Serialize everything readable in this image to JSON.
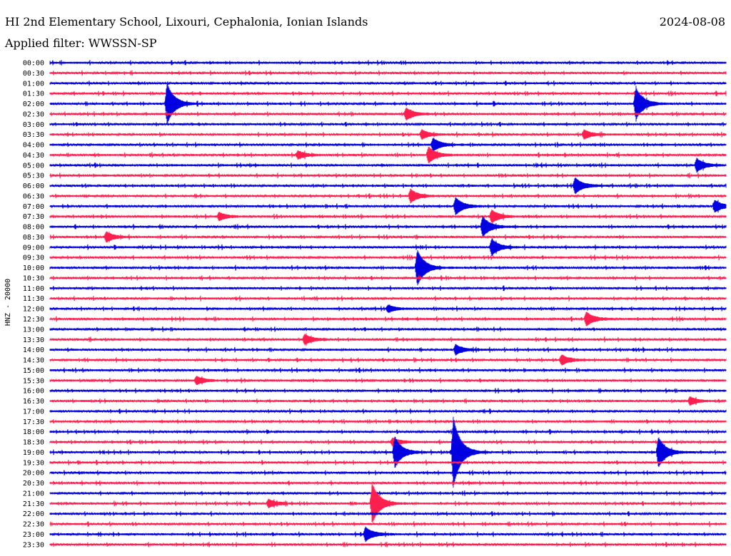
{
  "header": {
    "station": "HI 2nd Elementary School, Lixouri, Cephalonia, Ionian Islands",
    "date": "2024-08-08",
    "filter": "Applied filter: WWSSN-SP"
  },
  "colors": {
    "blue": "#0000e0",
    "red": "#ff1f4e"
  },
  "chart_data": {
    "type": "line",
    "title": "HI 2nd Elementary School, Lixouri, Cephalonia, Ionian Islands",
    "date": "2024-08-08",
    "filter": "WWSSN-SP",
    "ylabel": "HNZ - 20000",
    "x_unit": "minutes within 30-minute line",
    "xlim": [
      0,
      30
    ],
    "rows": [
      "00:00",
      "00:30",
      "01:00",
      "01:30",
      "02:00",
      "02:30",
      "03:00",
      "03:30",
      "04:00",
      "04:30",
      "05:00",
      "05:30",
      "06:00",
      "06:30",
      "07:00",
      "07:30",
      "08:00",
      "08:30",
      "09:00",
      "09:30",
      "10:00",
      "10:30",
      "11:00",
      "11:30",
      "12:00",
      "12:30",
      "13:00",
      "13:30",
      "14:00",
      "14:30",
      "15:00",
      "15:30",
      "16:00",
      "16:30",
      "17:00",
      "17:30",
      "18:00",
      "18:30",
      "19:00",
      "19:30",
      "20:00",
      "20:30",
      "21:00",
      "21:30",
      "22:00",
      "22:30",
      "23:00",
      "23:30"
    ],
    "row_colors": [
      "blue",
      "red"
    ],
    "events": [
      {
        "row": "02:00",
        "minute": 5.2,
        "amplitude": 4.0
      },
      {
        "row": "02:00",
        "minute": 26.0,
        "amplitude": 3.2
      },
      {
        "row": "02:30",
        "minute": 15.8,
        "amplitude": 1.2
      },
      {
        "row": "03:30",
        "minute": 16.5,
        "amplitude": 0.9
      },
      {
        "row": "03:30",
        "minute": 23.7,
        "amplitude": 0.9
      },
      {
        "row": "04:00",
        "minute": 17.0,
        "amplitude": 1.3
      },
      {
        "row": "04:30",
        "minute": 11.0,
        "amplitude": 0.8
      },
      {
        "row": "04:30",
        "minute": 16.8,
        "amplitude": 1.6
      },
      {
        "row": "05:00",
        "minute": 28.7,
        "amplitude": 1.3
      },
      {
        "row": "06:00",
        "minute": 23.3,
        "amplitude": 1.6
      },
      {
        "row": "06:30",
        "minute": 16.0,
        "amplitude": 1.3
      },
      {
        "row": "07:00",
        "minute": 18.0,
        "amplitude": 1.7
      },
      {
        "row": "07:00",
        "minute": 29.5,
        "amplitude": 1.2
      },
      {
        "row": "07:30",
        "minute": 7.5,
        "amplitude": 0.8
      },
      {
        "row": "07:30",
        "minute": 19.6,
        "amplitude": 1.3
      },
      {
        "row": "08:00",
        "minute": 19.2,
        "amplitude": 2.0
      },
      {
        "row": "08:30",
        "minute": 2.5,
        "amplitude": 1.0
      },
      {
        "row": "09:00",
        "minute": 19.6,
        "amplitude": 1.6
      },
      {
        "row": "10:00",
        "minute": 16.3,
        "amplitude": 3.5
      },
      {
        "row": "12:00",
        "minute": 15.0,
        "amplitude": 0.7
      },
      {
        "row": "12:30",
        "minute": 23.8,
        "amplitude": 1.4
      },
      {
        "row": "13:30",
        "minute": 11.3,
        "amplitude": 1.0
      },
      {
        "row": "14:00",
        "minute": 18.0,
        "amplitude": 1.0
      },
      {
        "row": "14:30",
        "minute": 22.7,
        "amplitude": 1.0
      },
      {
        "row": "15:30",
        "minute": 6.5,
        "amplitude": 0.8
      },
      {
        "row": "16:30",
        "minute": 28.4,
        "amplitude": 0.8
      },
      {
        "row": "18:30",
        "minute": 15.2,
        "amplitude": 0.8
      },
      {
        "row": "19:00",
        "minute": 15.3,
        "amplitude": 3.0
      },
      {
        "row": "19:00",
        "minute": 17.9,
        "amplitude": 7.0
      },
      {
        "row": "19:00",
        "minute": 27.0,
        "amplitude": 3.0
      },
      {
        "row": "21:30",
        "minute": 9.7,
        "amplitude": 0.8
      },
      {
        "row": "21:30",
        "minute": 14.3,
        "amplitude": 4.0
      },
      {
        "row": "23:00",
        "minute": 14.0,
        "amplitude": 1.4
      }
    ]
  }
}
